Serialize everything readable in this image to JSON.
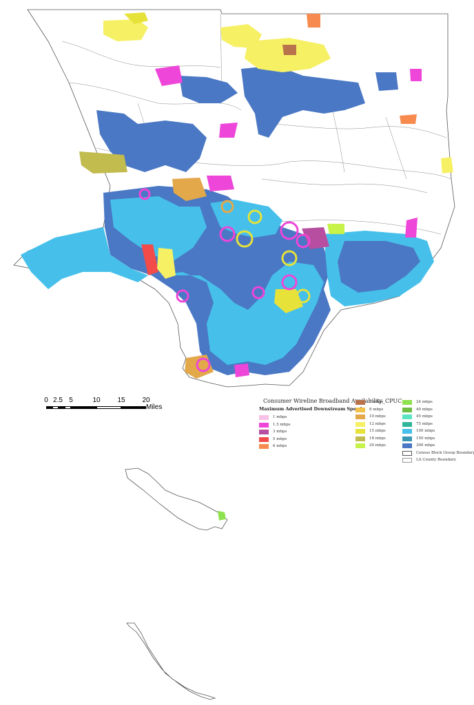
{
  "legend": {
    "title": "Consumer Wireline Broadband Availability_CPUC",
    "subtitle": "Maximum Advertised Downstream Speed",
    "items": [
      {
        "label": "1 mbps",
        "color": "#f7c1e6"
      },
      {
        "label": "1.5 mbps",
        "color": "#ee46d8"
      },
      {
        "label": "3 mbps",
        "color": "#b84ea0"
      },
      {
        "label": "5 mbps",
        "color": "#f34a4a"
      },
      {
        "label": "6 mbps",
        "color": "#f78b4f"
      },
      {
        "label": "7 mbps",
        "color": "#b8734d"
      },
      {
        "label": "8 mbps",
        "color": "#f2c14a"
      },
      {
        "label": "10 mbps",
        "color": "#e3a84a"
      },
      {
        "label": "12 mbps",
        "color": "#f6f065"
      },
      {
        "label": "15 mbps",
        "color": "#e6e23a"
      },
      {
        "label": "18 mbps",
        "color": "#c2bb4d"
      },
      {
        "label": "20 mbps",
        "color": "#c6f24a"
      },
      {
        "label": "24 mbps",
        "color": "#8fe24f"
      },
      {
        "label": "40 mbps",
        "color": "#6fbd45"
      },
      {
        "label": "45 mbps",
        "color": "#5be3c2"
      },
      {
        "label": "75 mbps",
        "color": "#2fb59a"
      },
      {
        "label": "100 mbps",
        "color": "#46c0ea"
      },
      {
        "label": "150 mbps",
        "color": "#3a98b5"
      },
      {
        "label": "300 mbps",
        "color": "#4a78c4"
      }
    ],
    "boundaries": [
      {
        "label": "Census Block Group Boundary"
      },
      {
        "label": "LA County Boundary"
      }
    ]
  },
  "scale_bar": {
    "ticks": [
      "0",
      "2.5",
      "5",
      "10",
      "15",
      "20"
    ],
    "units": "Miles"
  }
}
